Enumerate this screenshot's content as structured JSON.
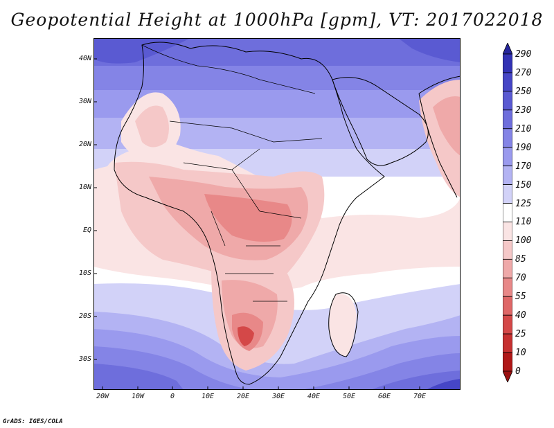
{
  "title": "Geopotential Height at 1000hPa [gpm], VT: 2017022018",
  "footer": "GrADS: IGES/COLA",
  "lat_labels": [
    "40N",
    "30N",
    "20N",
    "10N",
    "EQ",
    "10S",
    "20S",
    "30S"
  ],
  "lon_labels": [
    "20W",
    "10W",
    "0",
    "10E",
    "20E",
    "30E",
    "40E",
    "50E",
    "60E",
    "70E"
  ],
  "colorbar": {
    "labels": [
      "290",
      "270",
      "250",
      "230",
      "210",
      "190",
      "170",
      "150",
      "125",
      "110",
      "100",
      "85",
      "70",
      "55",
      "40",
      "25",
      "10",
      "0"
    ],
    "colors": [
      "#25259c",
      "#3232b4",
      "#4646c6",
      "#5a5ad2",
      "#6e6edc",
      "#8484e6",
      "#9a9aee",
      "#b3b3f3",
      "#d2d2f8",
      "#ffffff",
      "#fae4e4",
      "#f5c8c8",
      "#efa9a9",
      "#e88888",
      "#df6767",
      "#d44848",
      "#c63030",
      "#b01818",
      "#9a1010"
    ]
  },
  "map": {
    "lat_range": [
      -37,
      45
    ],
    "lon_range": [
      -22,
      80
    ],
    "colors": {
      "ocean_deep_blue": "#4646c6",
      "land_red": "#e88888",
      "neutral": "#ffffff"
    }
  }
}
